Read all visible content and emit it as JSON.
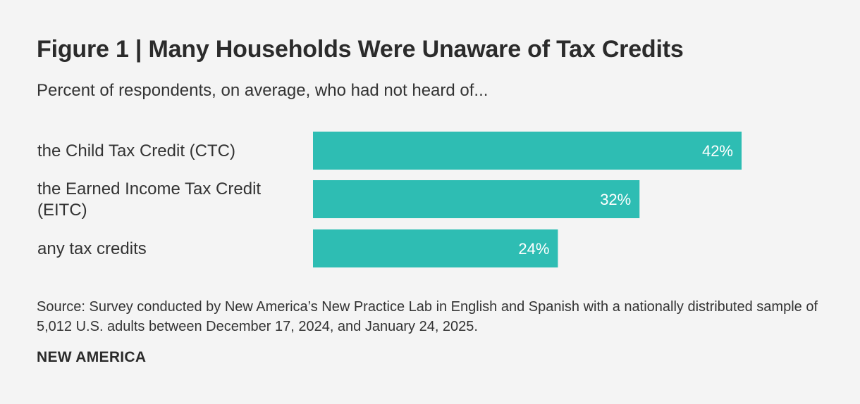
{
  "chart_data": {
    "type": "bar",
    "orientation": "horizontal",
    "title": "Figure 1 | Many Households Were Unaware of Tax Credits",
    "subtitle": "Percent of respondents, on average, who had not heard of...",
    "categories": [
      [
        "the Child Tax Credit (CTC)"
      ],
      [
        "the Earned Income Tax Credit",
        "(EITC)"
      ],
      [
        "any tax credits"
      ]
    ],
    "values": [
      42,
      32,
      24
    ],
    "value_labels": [
      "42%",
      "32%",
      "24%"
    ],
    "xlim": [
      0,
      42
    ],
    "grid": false,
    "bar_color": "#2ebdb3",
    "value_label_color": "#ffffff"
  },
  "footer": {
    "source": "Source: Survey conducted by New America’s New Practice Lab in English and Spanish with a nationally distributed sample of 5,012 U.S. adults between December 17, 2024, and January 24, 2025.",
    "brand": "NEW AMERICA"
  },
  "colors": {
    "background": "#f4f4f4",
    "text": "#2b2b2b"
  }
}
